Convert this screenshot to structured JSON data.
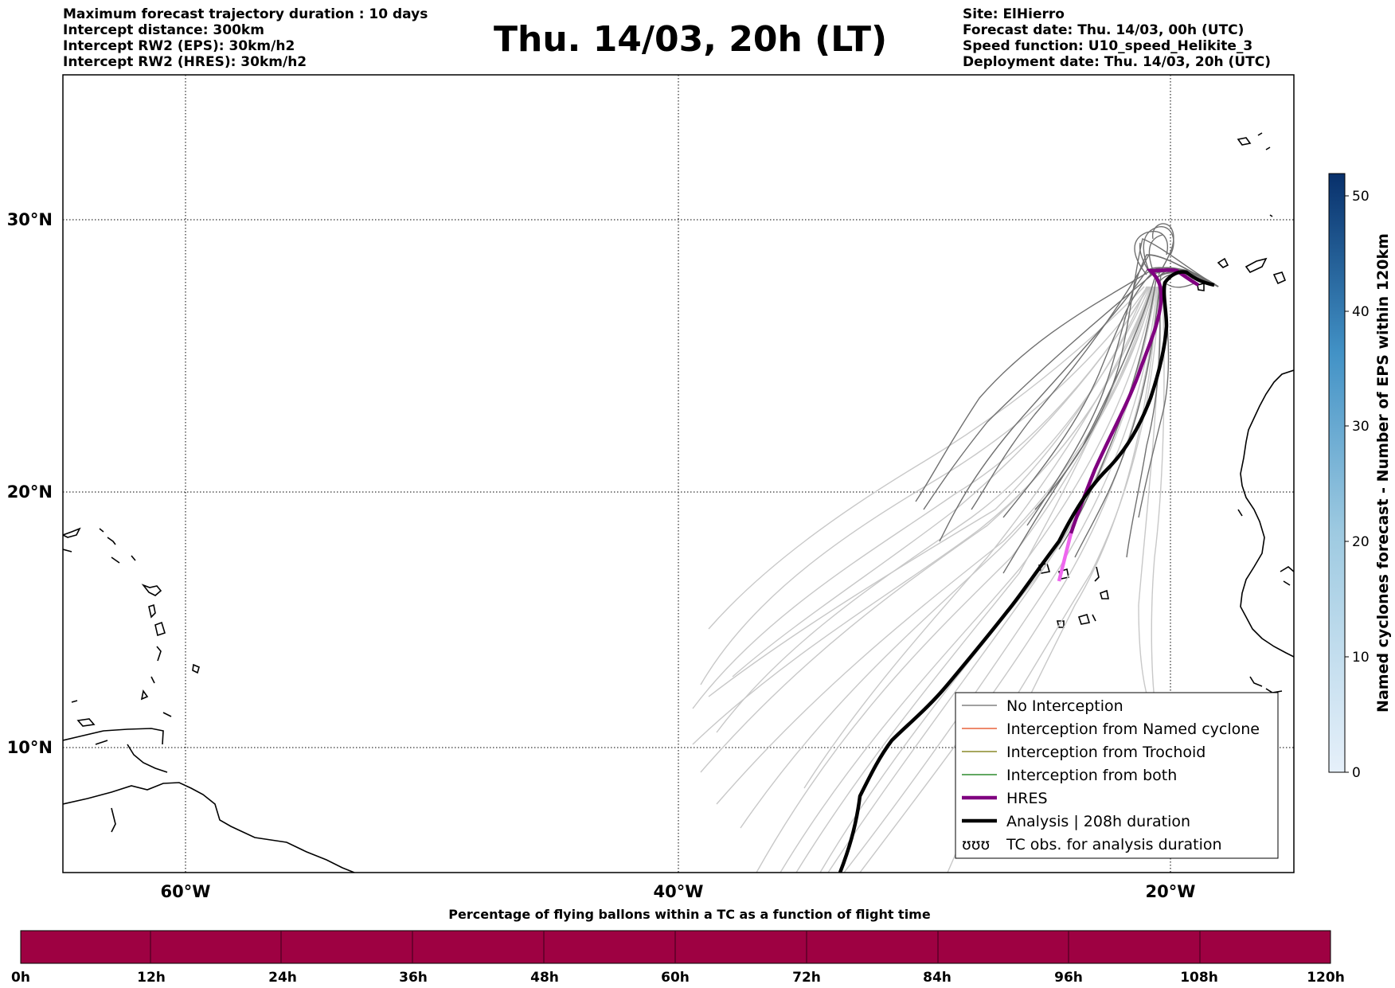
{
  "header_left": [
    "Maximum forecast trajectory duration : 10 days",
    "Intercept distance: 300km",
    "Intercept RW2 (EPS):  30km/h2",
    "Intercept RW2 (HRES): 30km/h2"
  ],
  "title": "Thu. 14/03, 20h (LT)",
  "header_right": [
    "Site: ElHierro",
    "Forecast date: Thu. 14/03, 00h (UTC)",
    "Speed function: U10_speed_Helikite_3",
    "Deployment date: Thu. 14/03, 20h (UTC)"
  ],
  "map": {
    "lat_labels": [
      "30°N",
      "20°N",
      "10°N"
    ],
    "lon_labels": [
      "60°W",
      "40°W",
      "20°W"
    ]
  },
  "legend": {
    "items": [
      {
        "label": "No Interception",
        "color": "#808080"
      },
      {
        "label": "Interception from Named cyclone",
        "color": "#e8643c"
      },
      {
        "label": "Interception from Trochoid",
        "color": "#8a8a2a"
      },
      {
        "label": "Interception from both",
        "color": "#2e8b2e"
      },
      {
        "label": "HRES",
        "color": "#800080"
      },
      {
        "label": "Analysis | 208h duration",
        "color": "#000000"
      },
      {
        "label": "TC obs. for analysis duration",
        "color": "#000000"
      }
    ],
    "tc_symbol": "ʊʊʊ"
  },
  "colorbar_right": {
    "label": "Named cyclones forecast - Number of EPS within 120km",
    "ticks": [
      "0",
      "10",
      "20",
      "30",
      "40",
      "50"
    ],
    "color_low": "#e6f0fa",
    "color_high": "#08306b"
  },
  "bottom_bar": {
    "title": "Percentage of flying ballons within a TC as a function of flight time",
    "ticks": [
      "0h",
      "12h",
      "24h",
      "36h",
      "48h",
      "60h",
      "72h",
      "84h",
      "96h",
      "108h",
      "120h"
    ],
    "fill_color": "#9e0142"
  }
}
